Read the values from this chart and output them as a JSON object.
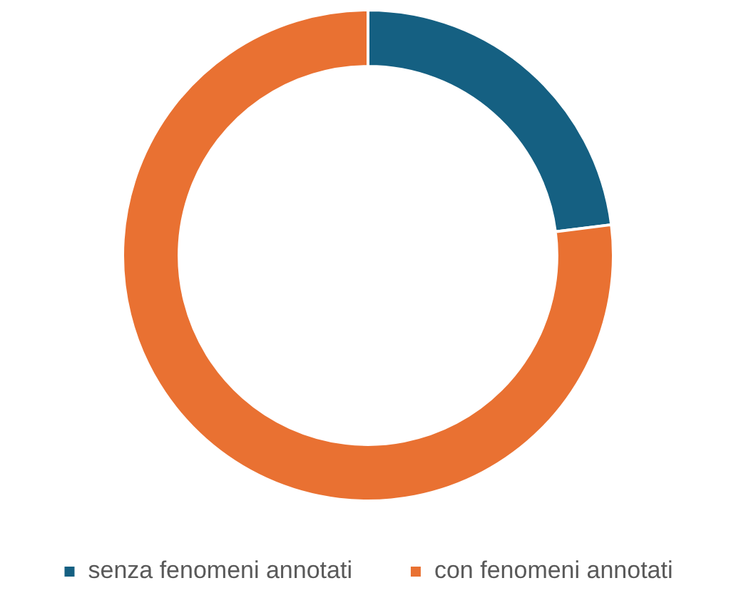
{
  "chart_data": {
    "type": "donut",
    "categories": [
      "senza fenomeni annotati",
      "con fenomeni annotati"
    ],
    "values": [
      23,
      77
    ],
    "colors": [
      "#156082",
      "#e97132"
    ],
    "legend": "bottom"
  }
}
